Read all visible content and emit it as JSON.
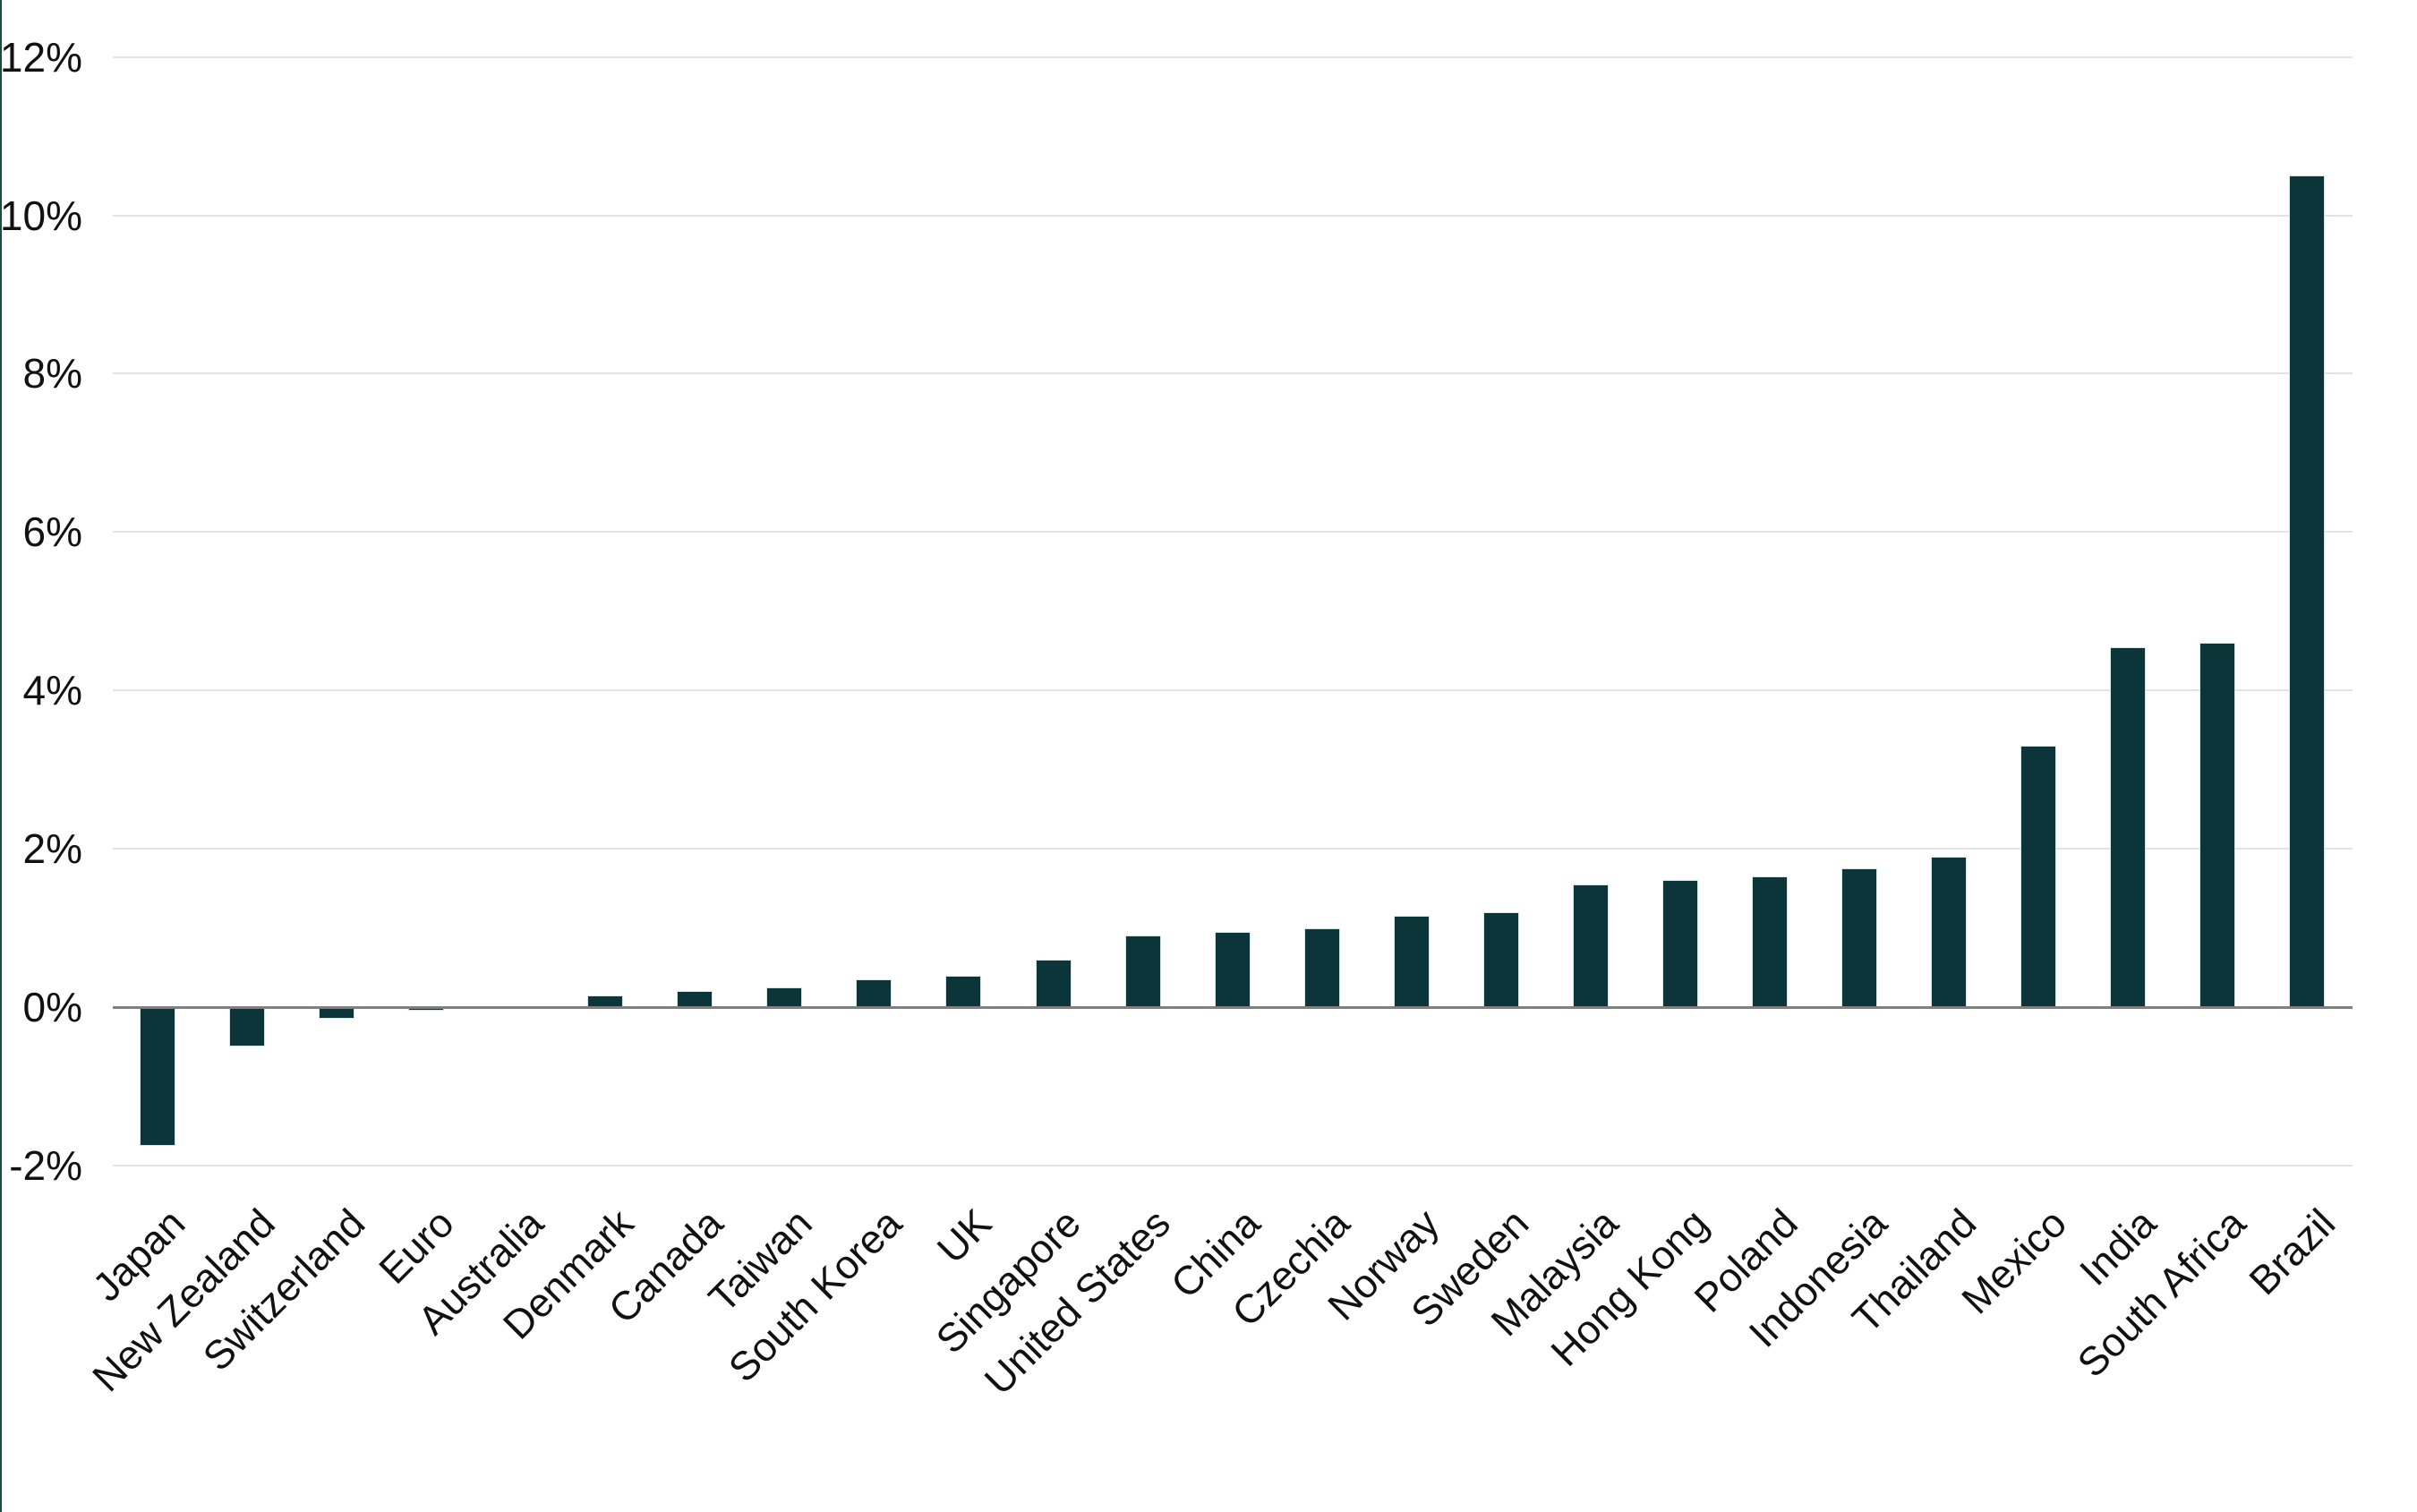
{
  "chart_data": {
    "type": "bar",
    "title": "",
    "xlabel": "",
    "ylabel": "",
    "unit": "%",
    "categories": [
      "Japan",
      "New Zealand",
      "Switzerland",
      "Euro",
      "Australia",
      "Denmark",
      "Canada",
      "Taiwan",
      "South Korea",
      "UK",
      "Singapore",
      "United States",
      "China",
      "Czechia",
      "Norway",
      "Sweden",
      "Malaysia",
      "Hong Kong",
      "Poland",
      "Indonesia",
      "Thailand",
      "Mexico",
      "India",
      "South Africa",
      "Brazil"
    ],
    "values": [
      -1.75,
      -0.5,
      -0.15,
      -0.05,
      0,
      0.15,
      0.2,
      0.25,
      0.35,
      0.4,
      0.6,
      0.9,
      0.95,
      1.0,
      1.15,
      1.2,
      1.55,
      1.6,
      1.65,
      1.75,
      1.9,
      3.3,
      4.55,
      4.6,
      10.5
    ],
    "yticks": [
      -2,
      0,
      2,
      4,
      6,
      8,
      10,
      12
    ],
    "ytick_labels": [
      "-2%",
      "0%",
      "2%",
      "4%",
      "6%",
      "8%",
      "10%",
      "12%"
    ],
    "ylim": [
      -2,
      12.75
    ],
    "grid": "horizontal",
    "legend": "none",
    "x_label_rotation_deg": 45,
    "colors": {
      "bar_fill": "#0b3539",
      "bar_border": "#d5e7e5",
      "gridline": "#e3e3e3",
      "zero_axis_line": "#7f7f7f",
      "tick_label_text": "#111111",
      "left_edge_line": "#1d4a41",
      "background": "#ffffff"
    }
  }
}
